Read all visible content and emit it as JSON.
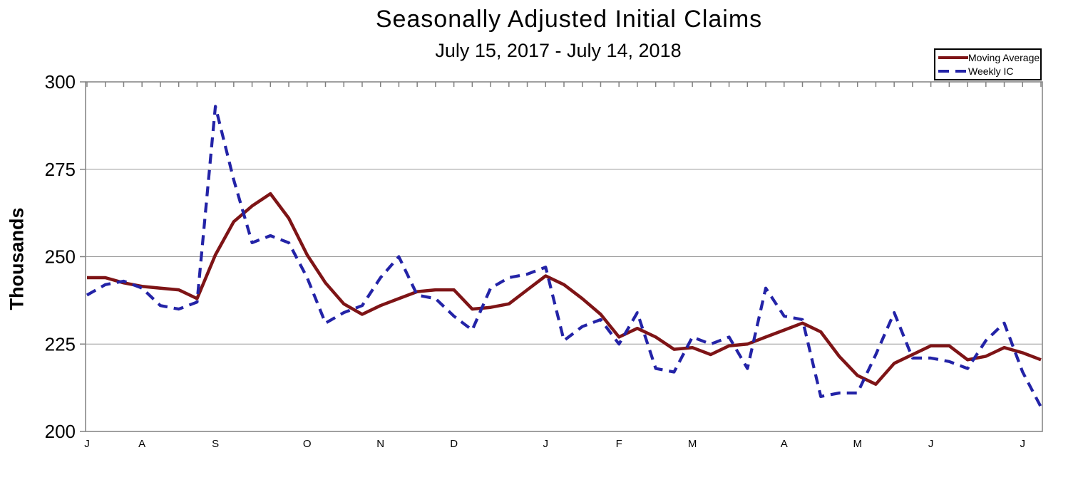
{
  "page": {
    "background": "#ffffff"
  },
  "header": {
    "title": "Seasonally Adjusted Initial Claims",
    "subtitle": "July 15, 2017 - July 14, 2018"
  },
  "y_axis": {
    "label": "Thousands"
  },
  "legend": {
    "items": [
      {
        "label": "Moving Average",
        "color": "#7E1416",
        "style": "solid"
      },
      {
        "label": "Weekly IC",
        "color": "#2323A7",
        "style": "dashed"
      }
    ]
  },
  "style": {
    "axis_color": "#808080",
    "grid_color": "#9a9a9a",
    "text_color": "#000000"
  },
  "chart_data": {
    "type": "line",
    "title": "Seasonally Adjusted Initial Claims",
    "subtitle": "July 15, 2017 - July 14, 2018",
    "xlabel": "",
    "ylabel": "Thousands",
    "ylim": [
      200,
      300
    ],
    "y_ticks": [
      300,
      275,
      250,
      225,
      200
    ],
    "grid": "horizontal-only",
    "legend_position": "top-right",
    "x_week_count": 53,
    "month_tick_labels": [
      {
        "label": "J",
        "week_index": 0
      },
      {
        "label": "A",
        "week_index": 3
      },
      {
        "label": "S",
        "week_index": 7
      },
      {
        "label": "O",
        "week_index": 12
      },
      {
        "label": "N",
        "week_index": 16
      },
      {
        "label": "D",
        "week_index": 20
      },
      {
        "label": "J",
        "week_index": 25
      },
      {
        "label": "F",
        "week_index": 29
      },
      {
        "label": "M",
        "week_index": 33
      },
      {
        "label": "A",
        "week_index": 38
      },
      {
        "label": "M",
        "week_index": 42
      },
      {
        "label": "J",
        "week_index": 46
      },
      {
        "label": "J",
        "week_index": 51
      }
    ],
    "series": [
      {
        "name": "Moving Average",
        "color": "#7E1416",
        "style": "solid",
        "units": "thousands",
        "values": [
          244,
          244,
          242.5,
          241.5,
          241,
          240.5,
          238,
          250.5,
          260,
          264.5,
          268,
          261,
          250.5,
          242.5,
          236.5,
          233.5,
          236,
          238,
          240,
          240.5,
          240.5,
          235,
          235.5,
          236.5,
          240.5,
          244.5,
          242,
          238,
          233.5,
          227,
          229.5,
          227,
          223.5,
          224,
          222,
          224.5,
          225,
          227,
          229,
          231,
          228.5,
          221.5,
          216,
          213.5,
          219.5,
          222,
          224.5,
          224.5,
          220.5,
          221.5,
          224,
          222.5,
          220.5
        ]
      },
      {
        "name": "Weekly IC",
        "color": "#2323A7",
        "style": "dashed",
        "units": "thousands",
        "values": [
          239,
          242,
          243,
          241,
          236,
          235,
          237,
          293,
          272,
          254,
          256,
          254,
          244,
          231,
          234,
          236,
          244,
          250,
          239,
          238,
          233,
          229,
          241,
          244,
          245,
          247,
          226,
          230,
          232,
          225,
          234,
          218,
          217,
          227,
          225,
          227,
          218,
          241,
          233,
          232,
          210,
          211,
          211,
          222,
          234,
          221,
          221,
          220,
          218,
          226,
          231,
          217,
          207
        ]
      }
    ]
  }
}
